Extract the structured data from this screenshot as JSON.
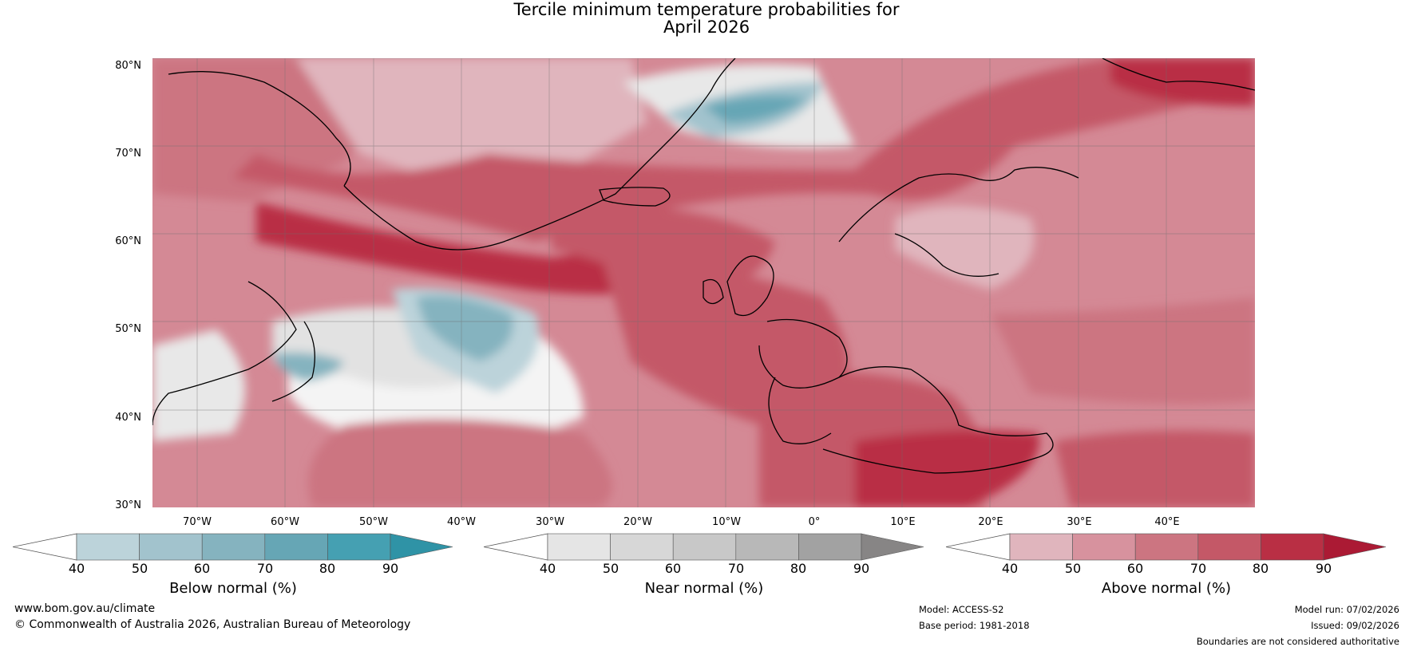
{
  "title": {
    "line1": "Tercile minimum temperature probabilities for",
    "line2": "April 2026"
  },
  "map": {
    "latitude_labels": [
      "80°N",
      "70°N",
      "60°N",
      "50°N",
      "40°N",
      "30°N"
    ],
    "longitude_labels": [
      "70°W",
      "60°W",
      "50°W",
      "40°W",
      "30°W",
      "20°W",
      "10°W",
      "0°",
      "10°E",
      "20°E",
      "30°E",
      "40°E"
    ],
    "regions": {
      "ocean_west": "above-normal-60",
      "greenland_sea_band": "above-normal-80",
      "labrador_sea": "below-normal-60",
      "north_atlantic_west": "near-normal",
      "greenland_sea_north": "below-normal-70",
      "europe_central": "above-normal-70",
      "mediterranean_east": "above-normal-90"
    }
  },
  "colorbars": [
    {
      "label": "Below normal (%)",
      "ticks": [
        "40",
        "50",
        "60",
        "70",
        "80",
        "90"
      ],
      "colors": [
        "#bcd3da",
        "#a2c3cd",
        "#85b3bf",
        "#66a6b5",
        "#45a0b2",
        "#2f93a6"
      ]
    },
    {
      "label": "Near normal (%)",
      "ticks": [
        "40",
        "50",
        "60",
        "70",
        "80",
        "90"
      ],
      "colors": [
        "#e5e5e5",
        "#d7d7d7",
        "#c8c8c8",
        "#b8b8b8",
        "#a2a2a2",
        "#878585"
      ]
    },
    {
      "label": "Above normal (%)",
      "ticks": [
        "40",
        "50",
        "60",
        "70",
        "80",
        "90"
      ],
      "colors": [
        "#e0b5bd",
        "#d7929e",
        "#cc7581",
        "#c45867",
        "#b92f44",
        "#ab1a34"
      ]
    }
  ],
  "footer": {
    "website": "www.bom.gov.au/climate",
    "copyright": "© Commonwealth of Australia 2026, Australian Bureau of Meteorology",
    "model": "Model: ACCESS-S2",
    "base_period": "Base period: 1981-2018",
    "model_run": "Model run: 07/02/2026",
    "issued": "Issued: 09/02/2026",
    "disclaimer": "Boundaries are not considered authoritative"
  }
}
